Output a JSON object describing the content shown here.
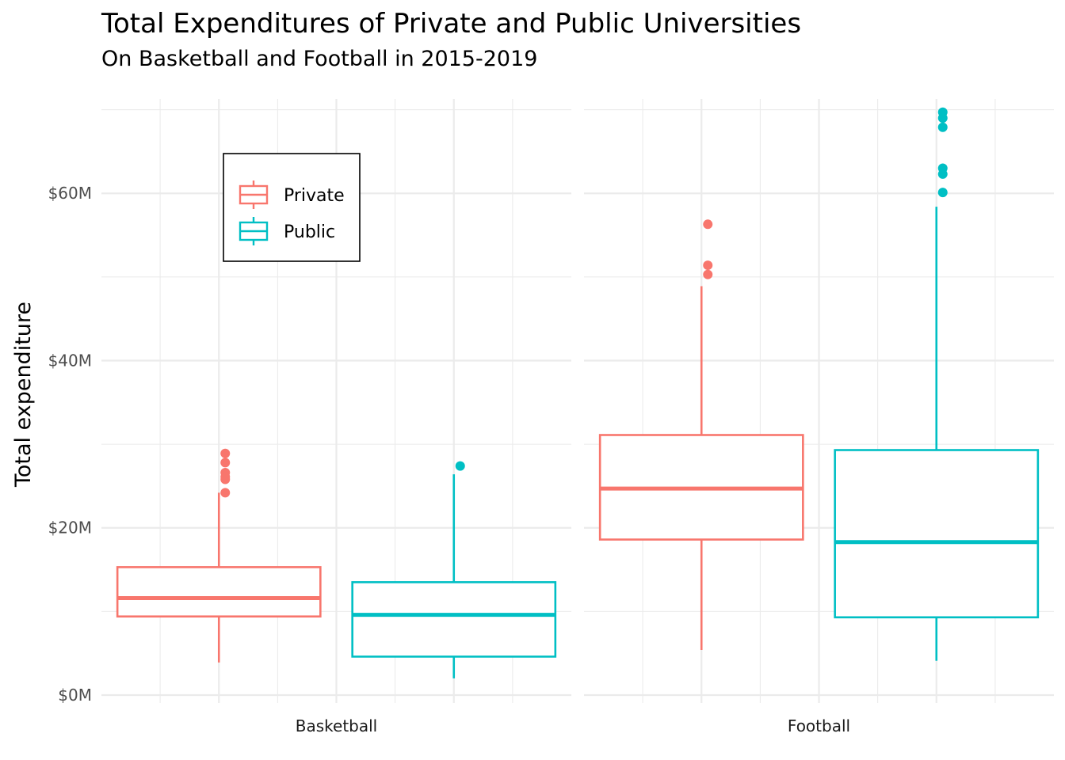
{
  "chart_data": {
    "type": "boxplot",
    "title": "Total Expenditures of Private and Public Universities",
    "subtitle": "On Basketball and Football in 2015-2019",
    "xlabel": "",
    "ylabel": "Total expenditure",
    "ylim": [
      0,
      70
    ],
    "y_ticks": [
      {
        "value": 0,
        "label": "$0M"
      },
      {
        "value": 20,
        "label": "$20M"
      },
      {
        "value": 40,
        "label": "$40M"
      },
      {
        "value": 60,
        "label": "$60M"
      }
    ],
    "grid": true,
    "legend": {
      "placement": "top-left",
      "entries": [
        {
          "name": "Private",
          "color": "#F8766D"
        },
        {
          "name": "Public",
          "color": "#00BFC4"
        }
      ]
    },
    "facets": [
      {
        "label": "Basketball",
        "boxes": [
          {
            "group": "Private",
            "color": "#F8766D",
            "whisker_low": 3.9,
            "q1": 9.4,
            "median": 11.6,
            "q3": 15.3,
            "whisker_high": 24.2,
            "outliers": [
              24.2,
              25.8,
              26.1,
              26.6,
              27.8,
              28.9
            ]
          },
          {
            "group": "Public",
            "color": "#00BFC4",
            "whisker_low": 2.0,
            "q1": 4.6,
            "median": 9.6,
            "q3": 13.5,
            "whisker_high": 26.4,
            "outliers": [
              27.4
            ]
          }
        ]
      },
      {
        "label": "Football",
        "boxes": [
          {
            "group": "Private",
            "color": "#F8766D",
            "whisker_low": 5.4,
            "q1": 18.6,
            "median": 24.7,
            "q3": 31.1,
            "whisker_high": 48.9,
            "outliers": [
              50.3,
              51.4,
              56.3
            ]
          },
          {
            "group": "Public",
            "color": "#00BFC4",
            "whisker_low": 4.1,
            "q1": 9.3,
            "median": 18.3,
            "q3": 29.3,
            "whisker_high": 58.4,
            "outliers": [
              60.1,
              62.3,
              63.0,
              67.9,
              69.0,
              69.7
            ]
          }
        ]
      }
    ]
  }
}
